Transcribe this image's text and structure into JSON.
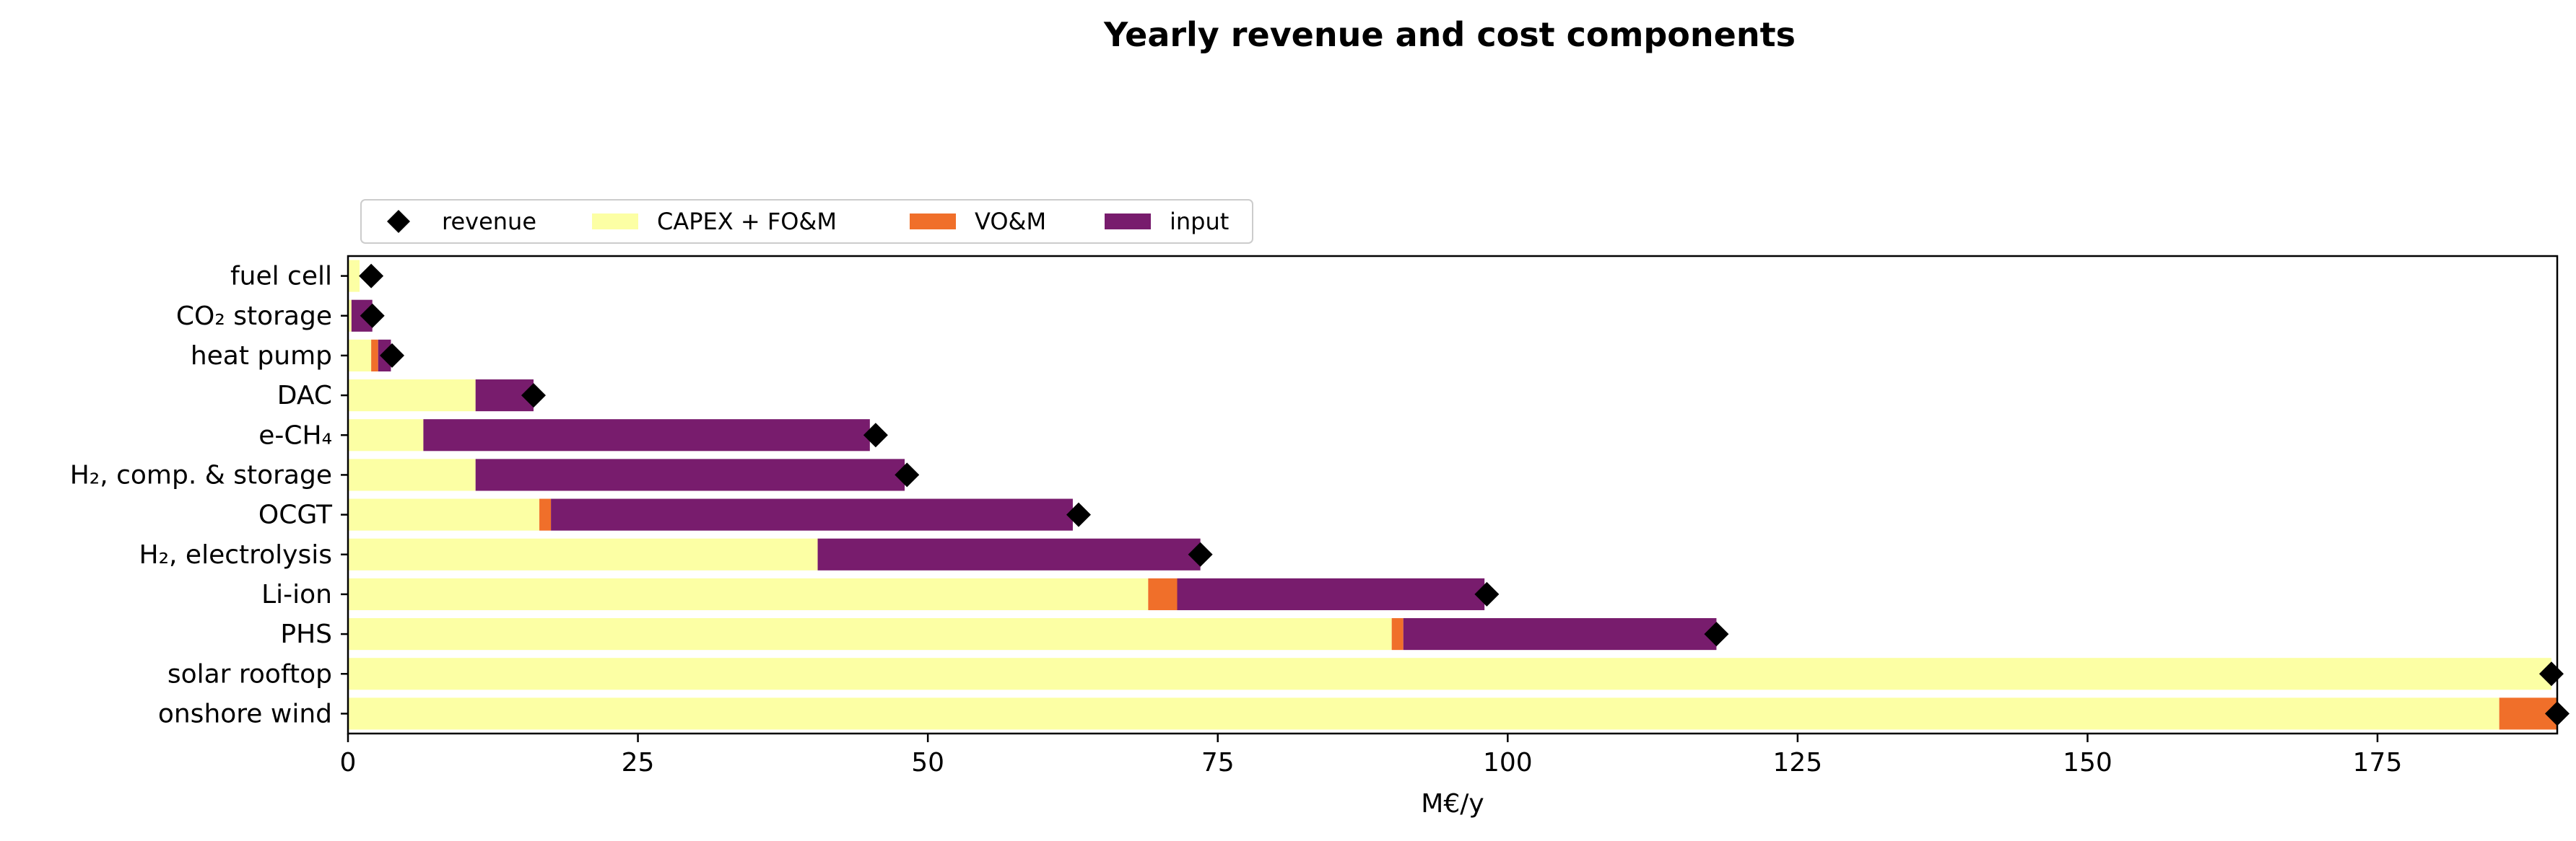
{
  "chart_data": {
    "type": "bar",
    "orientation": "horizontal",
    "stacked": true,
    "title": "Yearly revenue and cost components",
    "xlabel": "M€/y",
    "ylabel": "",
    "xlim": [
      0,
      190.5
    ],
    "xticks": [
      0,
      25,
      50,
      75,
      100,
      125,
      150,
      175
    ],
    "grid": false,
    "legend_position": "top-left, above plot",
    "categories": [
      "fuel cell",
      "CO₂ storage",
      "heat pump",
      "DAC",
      "e-CH₄",
      "H₂, comp. & storage",
      "OCGT",
      "H₂, electrolysis",
      "Li-ion",
      "PHS",
      "solar rooftop",
      "onshore wind"
    ],
    "series": [
      {
        "name": "CAPEX + FO&M",
        "color": "#fcffa4",
        "values": [
          1.0,
          0.3,
          2.0,
          11.0,
          6.5,
          11.0,
          16.5,
          40.5,
          69.0,
          90.0,
          190.0,
          185.5
        ]
      },
      {
        "name": "VO&M",
        "color": "#f06f2a",
        "values": [
          0.0,
          0.0,
          0.6,
          0.0,
          0.0,
          0.0,
          1.0,
          0.0,
          2.5,
          1.0,
          0.0,
          5.0
        ]
      },
      {
        "name": "input",
        "color": "#781c6d",
        "values": [
          0.0,
          1.8,
          1.1,
          5.0,
          38.5,
          37.0,
          45.0,
          33.0,
          26.5,
          27.0,
          0.0,
          0.0
        ]
      }
    ],
    "revenue": {
      "name": "revenue",
      "color": "#000000",
      "values": [
        2.0,
        2.1,
        3.8,
        16.0,
        45.5,
        48.2,
        63.0,
        73.5,
        98.2,
        118.0,
        190.0,
        190.5
      ]
    }
  }
}
